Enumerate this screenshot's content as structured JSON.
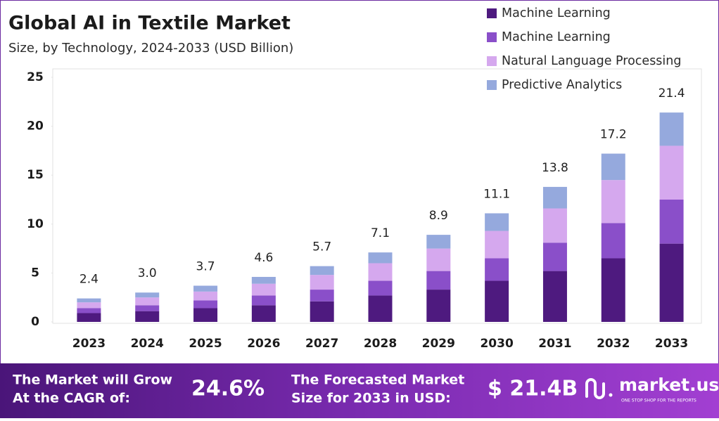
{
  "chart_data": {
    "type": "stacked_bar",
    "title": "Global AI in Textile Market",
    "subtitle": "Size, by Technology, 2024-2033 (USD Billion)",
    "categories": [
      "2023",
      "2024",
      "2025",
      "2026",
      "2027",
      "2028",
      "2029",
      "2030",
      "2031",
      "2032",
      "2033"
    ],
    "series": [
      {
        "name": "Machine Learning",
        "color": "#4e1a7f",
        "values": [
          0.9,
          1.1,
          1.4,
          1.7,
          2.1,
          2.7,
          3.3,
          4.2,
          5.2,
          6.5,
          8.0
        ]
      },
      {
        "name": "Machine Learning",
        "color": "#8a4fc9",
        "values": [
          0.5,
          0.6,
          0.8,
          1.0,
          1.2,
          1.5,
          1.9,
          2.3,
          2.9,
          3.6,
          4.5
        ]
      },
      {
        "name": "Natural Language Processing",
        "color": "#d5a8ee",
        "values": [
          0.6,
          0.8,
          0.9,
          1.2,
          1.5,
          1.8,
          2.3,
          2.8,
          3.5,
          4.4,
          5.5
        ]
      },
      {
        "name": "Predictive Analytics",
        "color": "#95a9dd",
        "values": [
          0.4,
          0.5,
          0.6,
          0.7,
          0.9,
          1.1,
          1.4,
          1.8,
          2.2,
          2.7,
          3.4
        ]
      }
    ],
    "totals": [
      2.4,
      3.0,
      3.7,
      4.6,
      5.7,
      7.1,
      8.9,
      11.1,
      13.8,
      17.2,
      21.4
    ],
    "total_labels": [
      "2.4",
      "3.0",
      "3.7",
      "4.6",
      "5.7",
      "7.1",
      "8.9",
      "11.1",
      "13.8",
      "17.2",
      "21.4"
    ],
    "ylim": [
      0,
      25
    ],
    "yticks": [
      0,
      5,
      10,
      15,
      20,
      25
    ],
    "grid": false,
    "legend": "top-right"
  },
  "footer": {
    "cagr_text": [
      "The Market will Grow",
      "At the CAGR of:"
    ],
    "cagr_value": "24.6%",
    "forecast_text": [
      "The Forecasted Market",
      "Size for 2033 in USD:"
    ],
    "forecast_value": "$ 21.4B",
    "brand": "market.us",
    "tagline": "ONE STOP SHOP FOR THE REPORTS"
  }
}
